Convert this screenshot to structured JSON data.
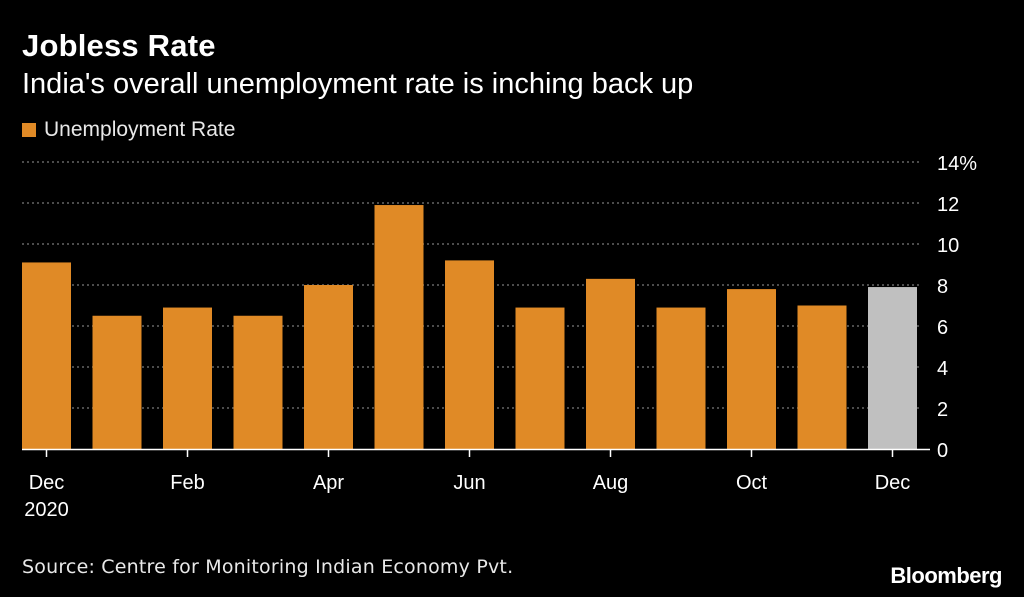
{
  "chart_data": {
    "type": "bar",
    "title": "Jobless Rate",
    "subtitle": "India's overall unemployment rate is inching back up",
    "legend": [
      {
        "name": "Unemployment Rate",
        "color": "#e08a26"
      }
    ],
    "categories": [
      "Dec 2020",
      "Jan 2021",
      "Feb 2021",
      "Mar 2021",
      "Apr 2021",
      "May 2021",
      "Jun 2021",
      "Jul 2021",
      "Aug 2021",
      "Sep 2021",
      "Oct 2021",
      "Nov 2021",
      "Dec 2021"
    ],
    "series": [
      {
        "name": "Unemployment Rate",
        "values": [
          9.1,
          6.5,
          6.9,
          6.5,
          8.0,
          11.9,
          9.2,
          6.9,
          8.3,
          6.9,
          7.8,
          7.0,
          7.9
        ],
        "color": "#e08a26",
        "highlight_last_color": "#c0c0c0"
      }
    ],
    "x_tick_labels": [
      {
        "index": 0,
        "label": "Dec",
        "sublabel": "2020"
      },
      {
        "index": 2,
        "label": "Feb",
        "sublabel": ""
      },
      {
        "index": 4,
        "label": "Apr",
        "sublabel": ""
      },
      {
        "index": 6,
        "label": "Jun",
        "sublabel": ""
      },
      {
        "index": 8,
        "label": "Aug",
        "sublabel": ""
      },
      {
        "index": 10,
        "label": "Oct",
        "sublabel": ""
      },
      {
        "index": 12,
        "label": "Dec",
        "sublabel": ""
      }
    ],
    "y_ticks": [
      {
        "value": 0,
        "label": "0"
      },
      {
        "value": 2,
        "label": "2"
      },
      {
        "value": 4,
        "label": "4"
      },
      {
        "value": 6,
        "label": "6"
      },
      {
        "value": 8,
        "label": "8"
      },
      {
        "value": 10,
        "label": "10"
      },
      {
        "value": 12,
        "label": "12"
      },
      {
        "value": 14,
        "label": "14%"
      }
    ],
    "ylim": [
      0,
      14
    ],
    "grid": true,
    "xlabel": "",
    "ylabel": ""
  },
  "source": "Source: Centre for Monitoring Indian Economy Pvt.",
  "brand": "Bloomberg",
  "colors": {
    "background": "#000000",
    "bar": "#e08a26",
    "bar_latest": "#c0c0c0",
    "grid": "#7a7a7a",
    "text": "#ffffff"
  }
}
